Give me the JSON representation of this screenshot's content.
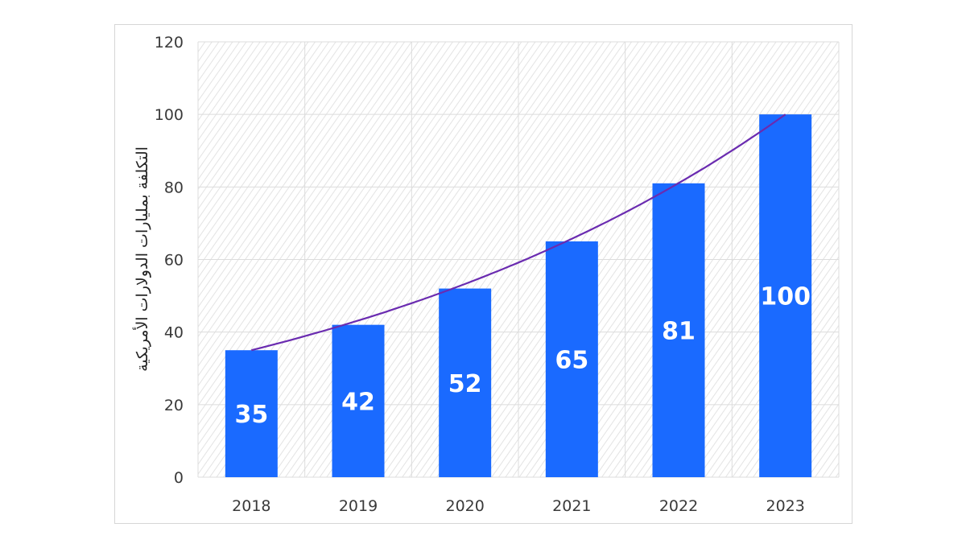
{
  "chart_data": {
    "type": "bar",
    "categories": [
      "2018",
      "2019",
      "2020",
      "2021",
      "2022",
      "2023"
    ],
    "values": [
      35,
      42,
      52,
      65,
      81,
      100
    ],
    "data_labels": [
      "35",
      "42",
      "52",
      "65",
      "81",
      "100"
    ],
    "title": "",
    "xlabel": "",
    "ylabel": "التكلفة بمليارات الدولارات الأمريكية",
    "ylim": [
      0,
      120
    ],
    "yticks": [
      0,
      20,
      40,
      60,
      80,
      100,
      120
    ],
    "grid": true,
    "trendline": {
      "type": "exponential"
    },
    "colors": {
      "bar": "#1a6aff",
      "trendline": "#6a2bb0",
      "grid": "#dcdcdc",
      "hatch": "#e3e3e3"
    }
  }
}
